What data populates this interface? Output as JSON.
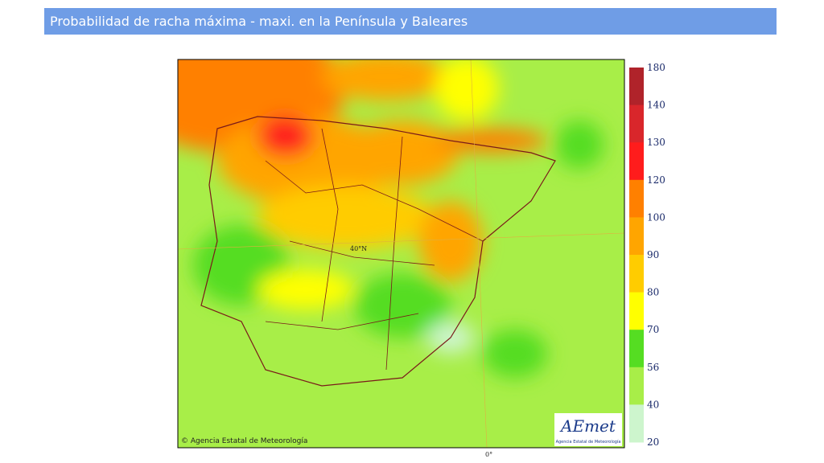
{
  "header": {
    "title": "Probabilidad de racha máxima - maxi. en la Península y Baleares"
  },
  "map": {
    "copyright": "© Agencia Estatal de Meteorología",
    "lat_label": "40°N",
    "lon_label": "0°"
  },
  "logo": {
    "name": "AEmet",
    "subtitle": "Agencia Estatal de Meteorología"
  },
  "legend": {
    "ticks": [
      180,
      140,
      130,
      120,
      100,
      90,
      80,
      70,
      56,
      40,
      20
    ],
    "colors": [
      "#b0232a",
      "#d9262b",
      "#ff1c1c",
      "#ff8000",
      "#ffa500",
      "#ffcc00",
      "#ffff00",
      "#55dd22",
      "#a8ee48",
      "#cdf5cd"
    ]
  }
}
